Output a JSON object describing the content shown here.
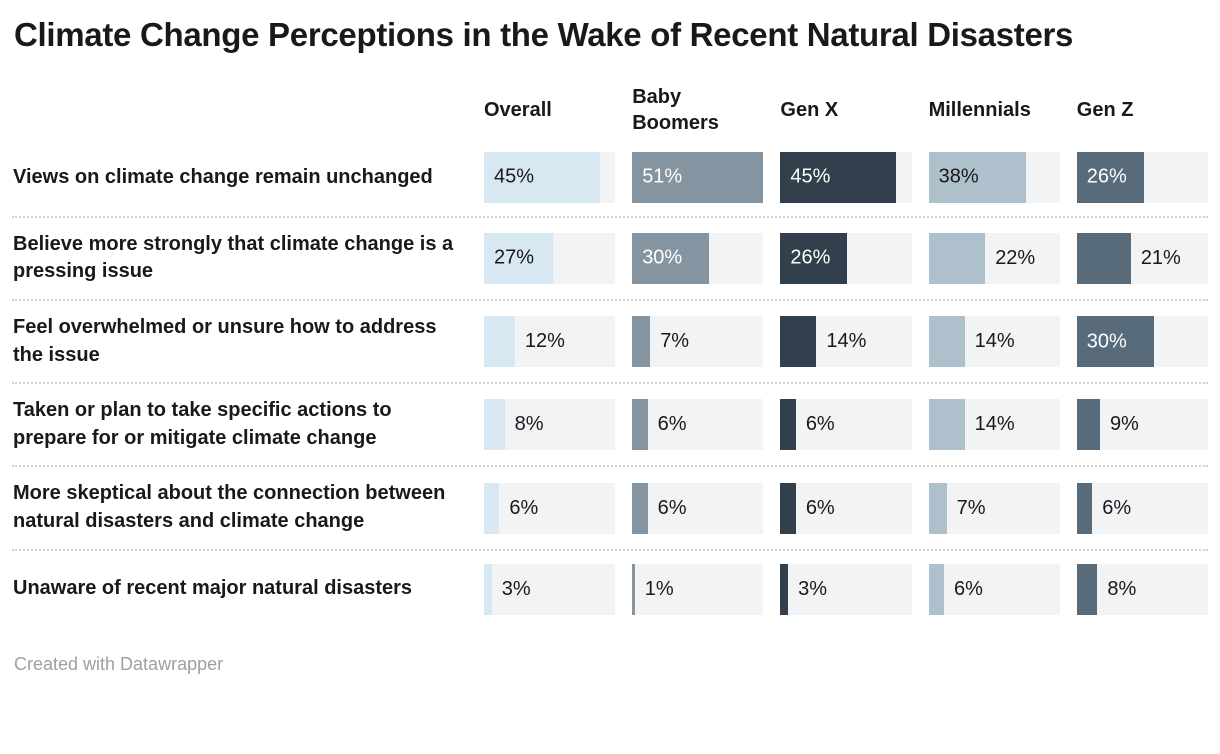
{
  "title": "Climate Change Perceptions in the Wake of Recent Natural Disasters",
  "footer": "Created with Datawrapper",
  "chart_data": {
    "type": "bar",
    "orientation": "horizontal",
    "unit": "%",
    "scale_max": 51,
    "grid": false,
    "legend_position": "column-headers",
    "track_color": "#f1f3f4",
    "label_inside_min_value": 24,
    "categories": [
      "Views on climate change remain unchanged",
      "Believe more strongly that climate change is a pressing issue",
      "Feel overwhelmed or unsure how to address the issue",
      "Taken or plan to take specific actions to prepare for or mitigate climate change",
      "More skeptical about the connection between natural disasters and climate change",
      "Unaware of recent major natural disasters"
    ],
    "series": [
      {
        "name": "Overall",
        "color": "#d8e8f2",
        "label_color": "#18191c",
        "values": [
          45,
          27,
          12,
          8,
          6,
          3
        ],
        "labels": [
          "45%",
          "27%",
          "12%",
          "8%",
          "6%",
          "3%"
        ]
      },
      {
        "name": "Baby Boomers",
        "color": "#8494a0",
        "label_color": "#ffffff",
        "values": [
          51,
          30,
          7,
          6,
          6,
          1
        ],
        "labels": [
          "51%",
          "30%",
          "7%",
          "6%",
          "6%",
          "1%"
        ]
      },
      {
        "name": "Gen X",
        "color": "#31404c",
        "label_color": "#ffffff",
        "values": [
          45,
          26,
          14,
          6,
          6,
          3
        ],
        "labels": [
          "45%",
          "26%",
          "14%",
          "6%",
          "6%",
          "3%"
        ]
      },
      {
        "name": "Millennials",
        "color": "#aec0cb",
        "label_color": "#18191c",
        "values": [
          38,
          22,
          14,
          14,
          7,
          6
        ],
        "labels": [
          "38%",
          "22%",
          "14%",
          "14%",
          "7%",
          "6%"
        ]
      },
      {
        "name": "Gen Z",
        "color": "#576b7b",
        "label_color": "#ffffff",
        "values": [
          26,
          21,
          30,
          9,
          6,
          8
        ],
        "labels": [
          "26%",
          "21%",
          "30%",
          "9%",
          "6%",
          "8%"
        ]
      }
    ]
  }
}
